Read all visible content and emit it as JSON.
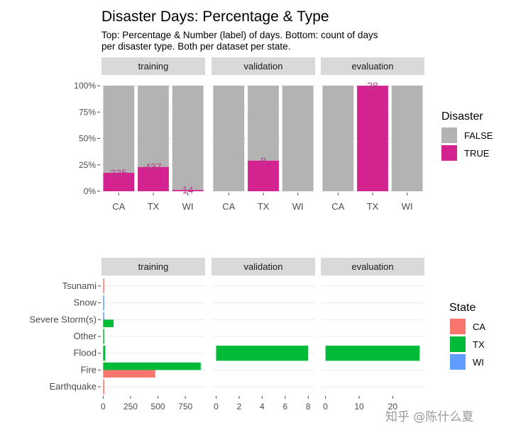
{
  "title": "Disaster Days: Percentage & Type",
  "subtitle_line1": "Top: Percentage & Number (label) of days. Bottom: count of days",
  "subtitle_line2": "per disaster type. Both per dataset per state.",
  "watermark": "知乎 @陈什么夏",
  "colors": {
    "false": "#b3b3b3",
    "true": "#d3238f",
    "label": "#b33f8c",
    "CA": "#f8766d",
    "TX": "#00ba38",
    "WI": "#619cff",
    "strip": "#d9d9d9",
    "grid": "#ebebeb"
  },
  "chart_data": [
    {
      "type": "bar",
      "stacking": "fill",
      "panels": [
        "training",
        "validation",
        "evaluation"
      ],
      "categories": [
        "CA",
        "TX",
        "WI"
      ],
      "y_ticks": [
        "0%",
        "25%",
        "50%",
        "75%",
        "100%"
      ],
      "ylim": [
        0,
        1
      ],
      "legend_title": "Disaster",
      "legend_items": [
        "FALSE",
        "TRUE"
      ],
      "series": [
        {
          "panel": "training",
          "true_fraction": [
            0.175,
            0.23,
            0.012
          ],
          "labels": [
            "335",
            "437",
            "14"
          ]
        },
        {
          "panel": "validation",
          "true_fraction": [
            0,
            0.29,
            0
          ],
          "labels": [
            "",
            "8",
            ""
          ]
        },
        {
          "panel": "evaluation",
          "true_fraction": [
            0,
            1.0,
            0
          ],
          "labels": [
            "",
            "28",
            ""
          ]
        }
      ]
    },
    {
      "type": "bar",
      "orientation": "horizontal",
      "panels": [
        "training",
        "validation",
        "evaluation"
      ],
      "categories": [
        "Earthquake",
        "Fire",
        "Flood",
        "Other",
        "Severe Storm(s)",
        "Snow",
        "Tsunami"
      ],
      "legend_title": "State",
      "legend_items": [
        "CA",
        "TX",
        "WI"
      ],
      "x_ticks": [
        [
          "0",
          "250",
          "500",
          "750"
        ],
        [
          "0",
          "2",
          "4",
          "6",
          "8"
        ],
        [
          "0",
          "10",
          "20"
        ]
      ],
      "xlim": [
        [
          -15,
          930
        ],
        [
          -0.4,
          8.6
        ],
        [
          -1.4,
          29.4
        ]
      ],
      "tick_values": [
        [
          0,
          250,
          500,
          750
        ],
        [
          0,
          2,
          4,
          6,
          8
        ],
        [
          0,
          10,
          20
        ]
      ],
      "series": [
        {
          "panel": "training",
          "name": "CA",
          "values": [
            10,
            475,
            0,
            0,
            0,
            0,
            2
          ]
        },
        {
          "panel": "training",
          "name": "TX",
          "values": [
            0,
            890,
            20,
            5,
            95,
            0,
            0
          ]
        },
        {
          "panel": "training",
          "name": "WI",
          "values": [
            0,
            0,
            0,
            0,
            10,
            4,
            0
          ]
        },
        {
          "panel": "validation",
          "name": "TX",
          "values": [
            0,
            0,
            8,
            0,
            0,
            0,
            0
          ]
        },
        {
          "panel": "evaluation",
          "name": "TX",
          "values": [
            0,
            0,
            28,
            0,
            0,
            0,
            0
          ]
        }
      ]
    }
  ]
}
